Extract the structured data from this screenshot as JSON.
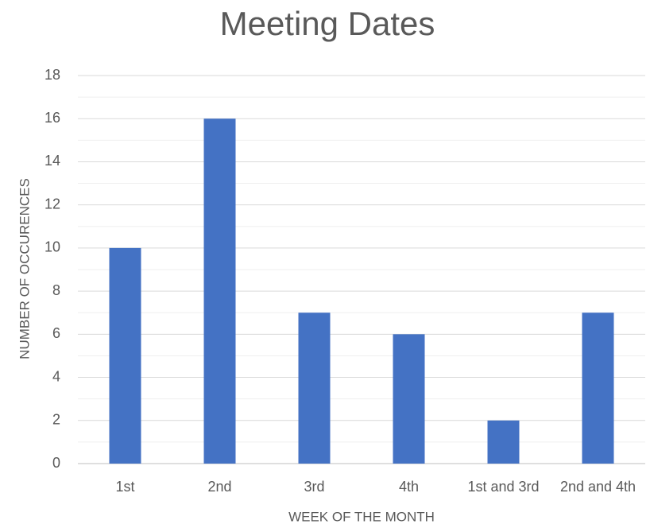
{
  "chart_data": {
    "type": "bar",
    "title": "Meeting Dates",
    "x_label": "WEEK OF THE MONTH",
    "y_label": "NUMBER OF OCCURENCES",
    "categories": [
      "1st",
      "2nd",
      "3rd",
      "4th",
      "1st and 3rd",
      "2nd and 4th"
    ],
    "values": [
      10,
      16,
      7,
      6,
      2,
      7
    ],
    "color": "#4472c4",
    "ylim": [
      0,
      18
    ],
    "yticks": [
      0,
      2,
      4,
      6,
      8,
      10,
      12,
      14,
      16,
      18
    ],
    "minor_yticks": [
      1,
      3,
      5,
      7,
      9,
      11,
      13,
      15,
      17
    ],
    "grid": true
  }
}
